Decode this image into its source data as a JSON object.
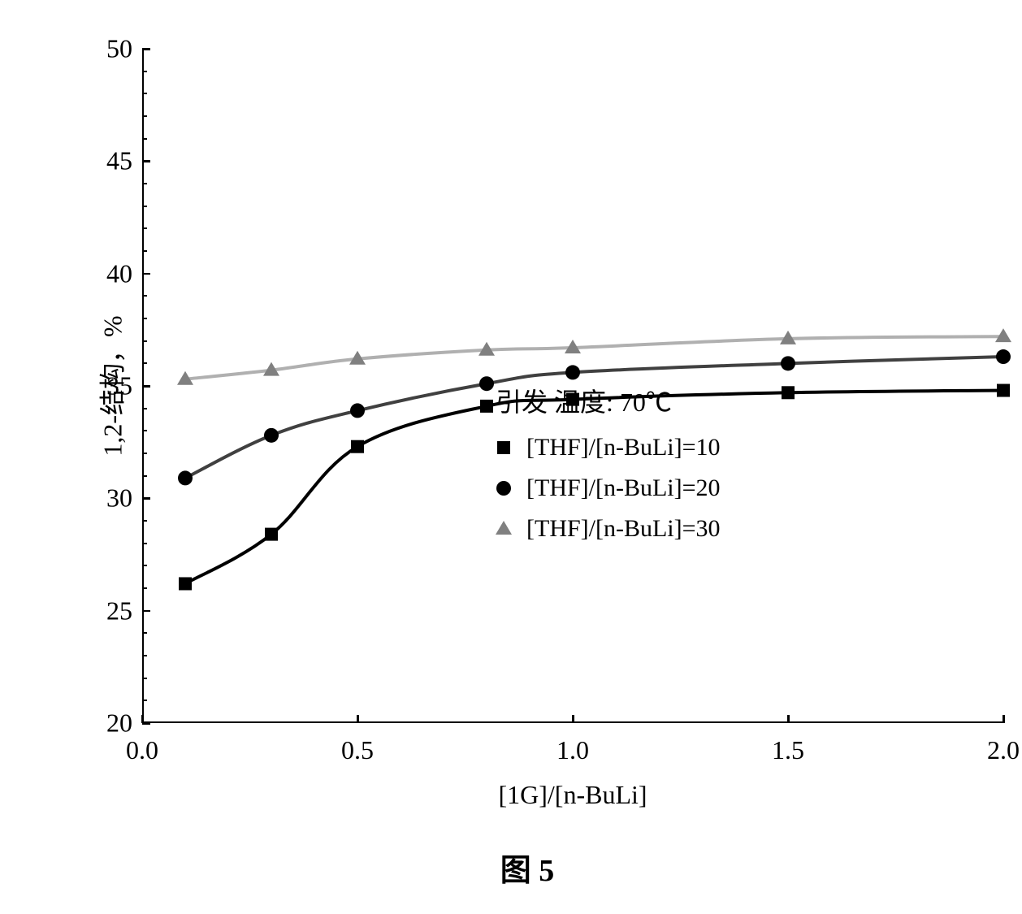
{
  "chart": {
    "type": "line",
    "ylabel": "1,2-结构，%",
    "xlabel": "[1G]/[n-BuLi]",
    "xlim": [
      0.0,
      2.0
    ],
    "ylim": [
      20,
      50
    ],
    "xtick_step": 0.5,
    "ytick_step": 5,
    "xticks": [
      0.0,
      0.5,
      1.0,
      1.5,
      2.0
    ],
    "yticks": [
      20,
      25,
      30,
      35,
      40,
      45,
      50
    ],
    "yticks_minor_step": 1,
    "background_color": "#ffffff",
    "axis_color": "#000000",
    "line_width": 4,
    "label_fontsize": 32,
    "tick_fontsize": 32,
    "series": [
      {
        "name": "THF/n-BuLi=10",
        "label": "[THF]/[n-BuLi]=10",
        "marker": "square",
        "marker_size": 16,
        "color": "#000000",
        "line_color": "#000000",
        "x": [
          0.1,
          0.3,
          0.5,
          0.8,
          1.0,
          1.5,
          2.0
        ],
        "y": [
          26.2,
          28.4,
          32.3,
          34.1,
          34.4,
          34.7,
          34.8
        ]
      },
      {
        "name": "THF/n-BuLi=20",
        "label": "[THF]/[n-BuLi]=20",
        "marker": "circle",
        "marker_size": 16,
        "color": "#000000",
        "line_color": "#404040",
        "x": [
          0.1,
          0.3,
          0.5,
          0.8,
          1.0,
          1.5,
          2.0
        ],
        "y": [
          30.9,
          32.8,
          33.9,
          35.1,
          35.6,
          36.0,
          36.3
        ]
      },
      {
        "name": "THF/n-BuLi=30",
        "label": "[THF]/[n-BuLi]=30",
        "marker": "triangle",
        "marker_size": 16,
        "color": "#808080",
        "line_color": "#b0b0b0",
        "x": [
          0.1,
          0.3,
          0.5,
          0.8,
          1.0,
          1.5,
          2.0
        ],
        "y": [
          35.3,
          35.7,
          36.2,
          36.6,
          36.7,
          37.1,
          37.2
        ]
      }
    ],
    "legend": {
      "title": "引发 温度: 70℃",
      "position": "inside-right-middle"
    },
    "caption": "图 5"
  }
}
